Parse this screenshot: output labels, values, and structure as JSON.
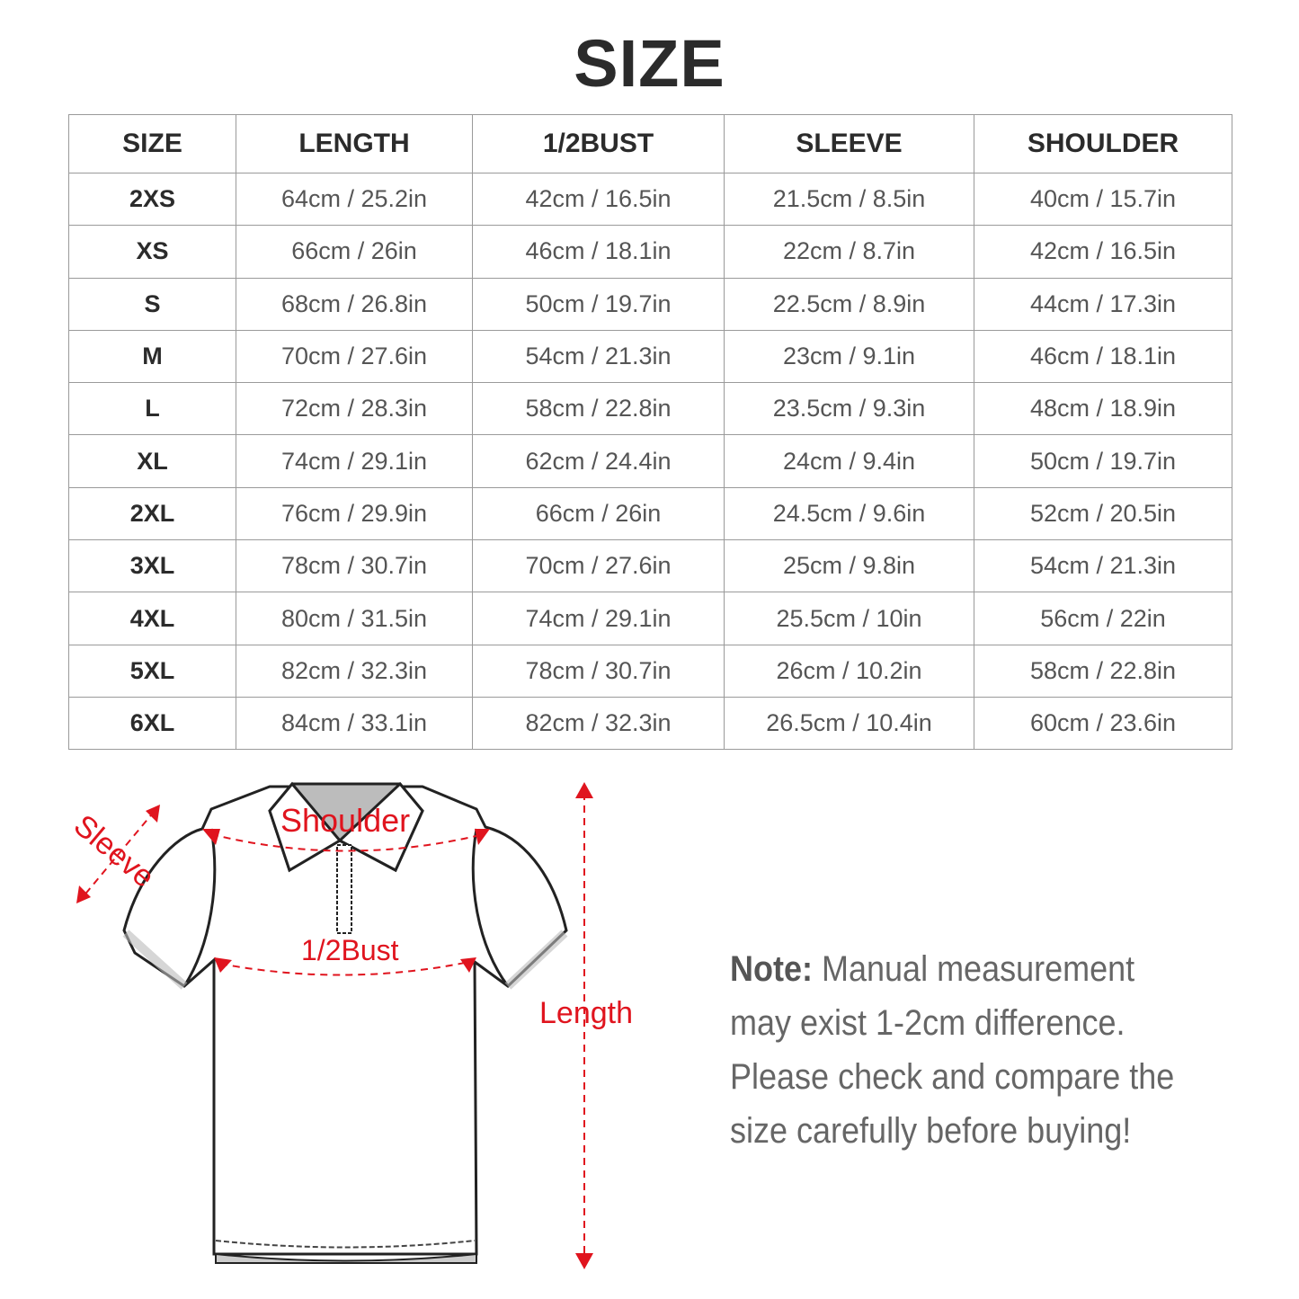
{
  "title": "SIZE",
  "table": {
    "headers": [
      "SIZE",
      "LENGTH",
      "1/2BUST",
      "SLEEVE",
      "SHOULDER"
    ],
    "rows": [
      [
        "2XS",
        "64cm / 25.2in",
        "42cm / 16.5in",
        "21.5cm / 8.5in",
        "40cm / 15.7in"
      ],
      [
        "XS",
        "66cm / 26in",
        "46cm / 18.1in",
        "22cm / 8.7in",
        "42cm / 16.5in"
      ],
      [
        "S",
        "68cm / 26.8in",
        "50cm / 19.7in",
        "22.5cm / 8.9in",
        "44cm / 17.3in"
      ],
      [
        "M",
        "70cm / 27.6in",
        "54cm / 21.3in",
        "23cm / 9.1in",
        "46cm / 18.1in"
      ],
      [
        "L",
        "72cm / 28.3in",
        "58cm / 22.8in",
        "23.5cm / 9.3in",
        "48cm / 18.9in"
      ],
      [
        "XL",
        "74cm / 29.1in",
        "62cm / 24.4in",
        "24cm / 9.4in",
        "50cm / 19.7in"
      ],
      [
        "2XL",
        "76cm / 29.9in",
        "66cm / 26in",
        "24.5cm / 9.6in",
        "52cm / 20.5in"
      ],
      [
        "3XL",
        "78cm / 30.7in",
        "70cm / 27.6in",
        "25cm / 9.8in",
        "54cm / 21.3in"
      ],
      [
        "4XL",
        "80cm / 31.5in",
        "74cm / 29.1in",
        "25.5cm / 10in",
        "56cm / 22in"
      ],
      [
        "5XL",
        "82cm / 32.3in",
        "78cm / 30.7in",
        "26cm / 10.2in",
        "58cm / 22.8in"
      ],
      [
        "6XL",
        "84cm / 33.1in",
        "82cm / 32.3in",
        "26.5cm / 10.4in",
        "60cm / 23.6in"
      ]
    ]
  },
  "diagram": {
    "labels": {
      "sleeve": "Sleeve",
      "shoulder": "Shoulder",
      "bust": "1/2Bust",
      "length": "Length"
    },
    "accent_color": "#e0141e"
  },
  "note": {
    "label": "Note:",
    "text": " Manual measurement may exist 1-2cm difference. Please check and compare the size carefully before buying!"
  }
}
